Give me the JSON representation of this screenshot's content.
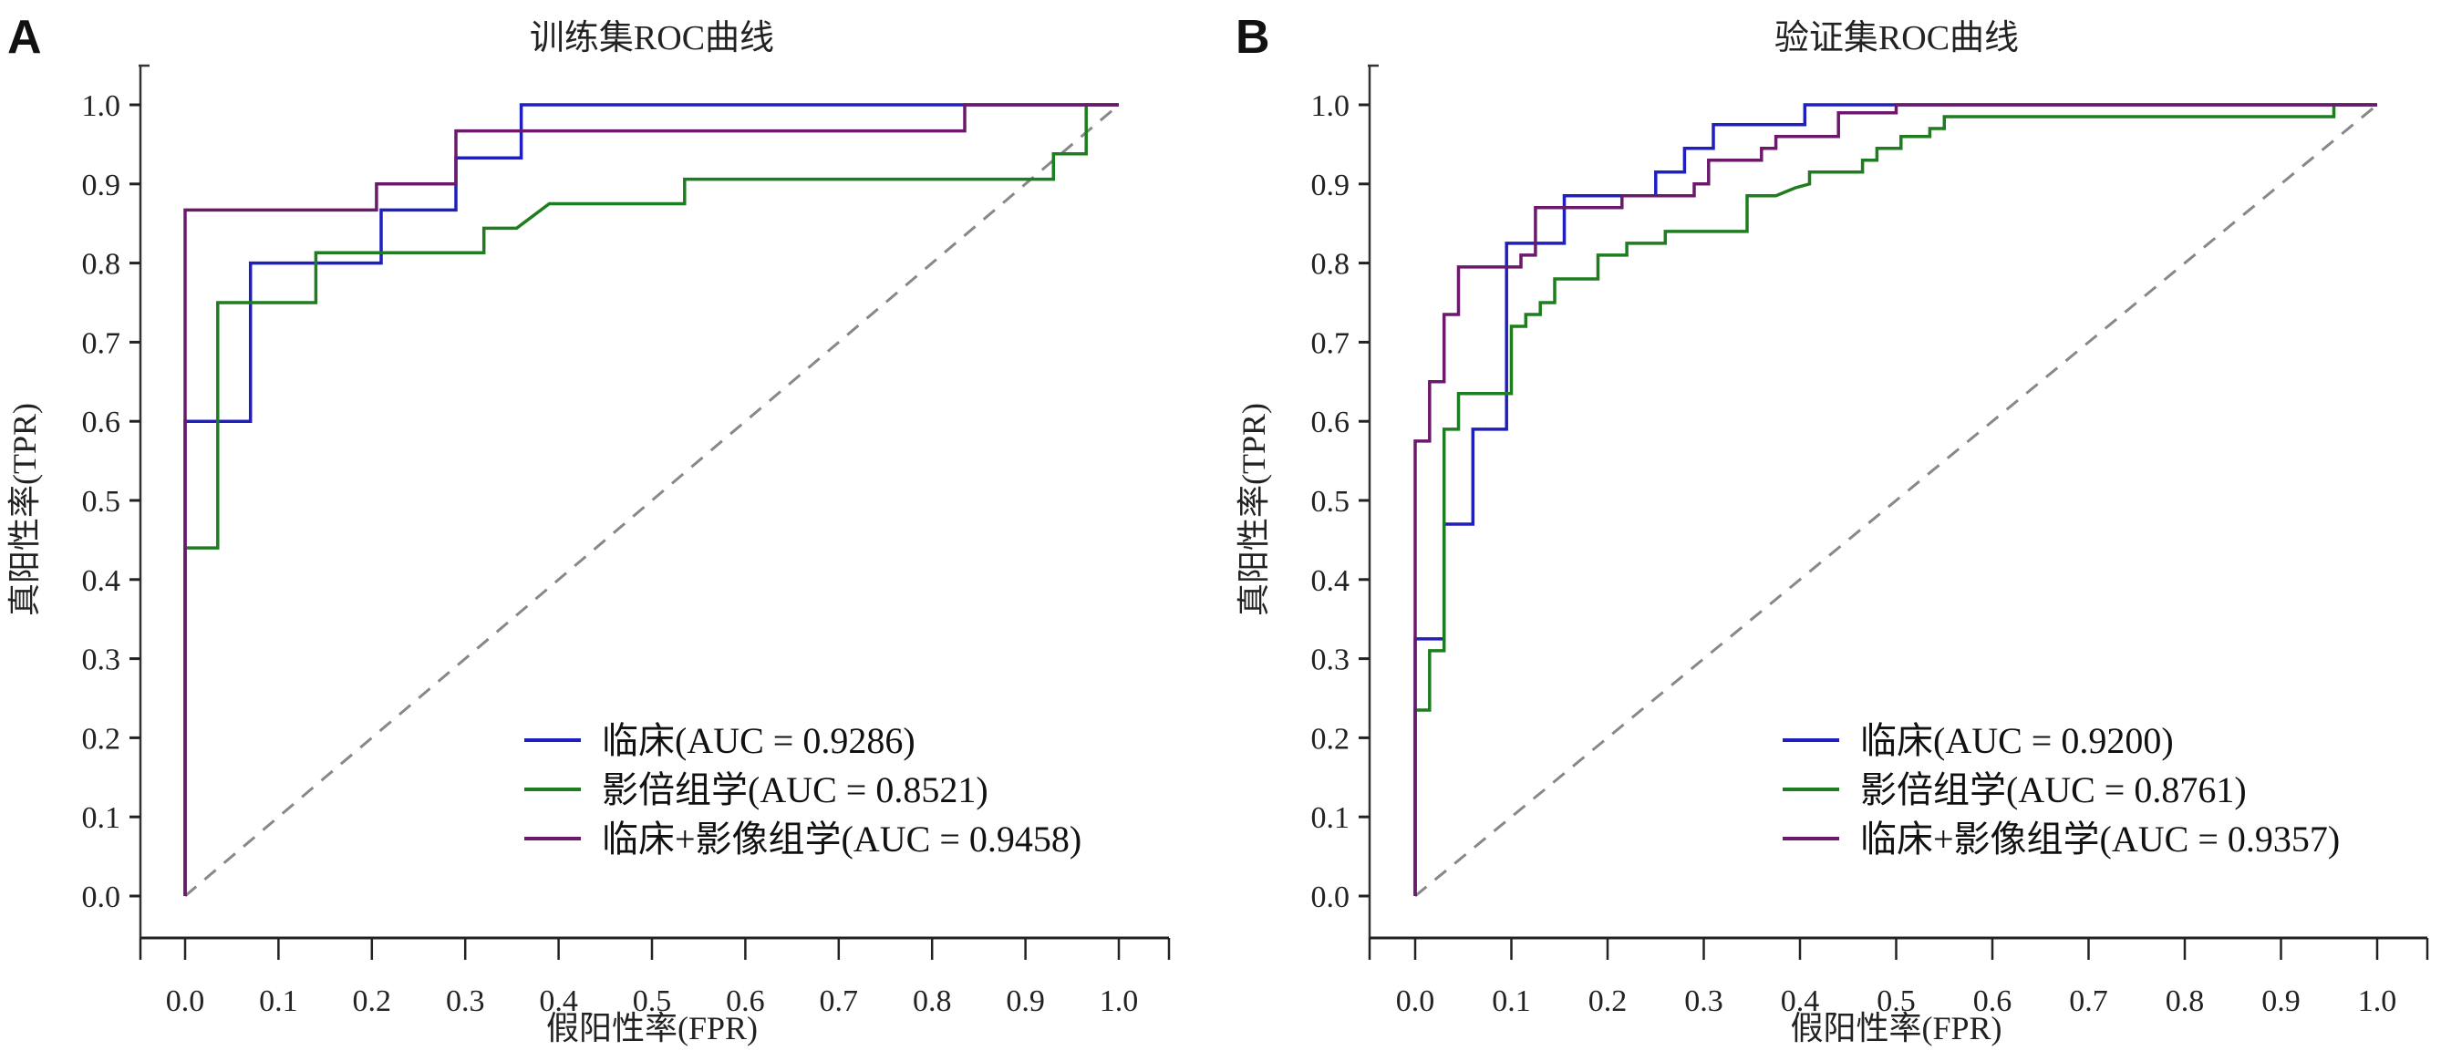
{
  "chart_data": [
    {
      "type": "line",
      "panel_label": "A",
      "title": "训练集ROC曲线",
      "xlabel": "假阳性率(FPR)",
      "ylabel": "真阳性率(TPR)",
      "xlim": [
        0,
        1
      ],
      "ylim": [
        0,
        1
      ],
      "xticks": [
        "0.0",
        "0.1",
        "0.2",
        "0.3",
        "0.4",
        "0.5",
        "0.6",
        "0.7",
        "0.8",
        "0.9",
        "1.0"
      ],
      "yticks": [
        "0.0",
        "0.1",
        "0.2",
        "0.3",
        "0.4",
        "0.5",
        "0.6",
        "0.7",
        "0.8",
        "0.9",
        "1.0"
      ],
      "grid": false,
      "legend_position": "bottom-right",
      "reference_line": {
        "name": "chance",
        "style": "dashed",
        "color": "#888888",
        "x": [
          0,
          1
        ],
        "y": [
          0,
          1
        ]
      },
      "series": [
        {
          "name": "临床(AUC = 0.9286)",
          "color": "#1f1fbf",
          "x": [
            0,
            0,
            0.07,
            0.07,
            0.21,
            0.21,
            0.29,
            0.29,
            0.36,
            0.36,
            1
          ],
          "y": [
            0,
            0.6,
            0.6,
            0.8,
            0.8,
            0.867,
            0.867,
            0.933,
            0.933,
            1.0,
            1.0
          ]
        },
        {
          "name": "影倍组学(AUC = 0.8521)",
          "color": "#1e7d1e",
          "x": [
            0,
            0,
            0.035,
            0.035,
            0.14,
            0.14,
            0.32,
            0.32,
            0.355,
            0.39,
            0.535,
            0.535,
            0.93,
            0.93,
            0.965,
            0.965,
            1
          ],
          "y": [
            0,
            0.44,
            0.44,
            0.75,
            0.75,
            0.813,
            0.813,
            0.844,
            0.844,
            0.875,
            0.875,
            0.906,
            0.906,
            0.938,
            0.938,
            1.0,
            1.0
          ]
        },
        {
          "name": "临床+影像组学(AUC = 0.9458)",
          "color": "#6b1a6b",
          "x": [
            0,
            0,
            0.205,
            0.205,
            0.29,
            0.29,
            0.835,
            0.835,
            1
          ],
          "y": [
            0,
            0.867,
            0.867,
            0.9,
            0.9,
            0.967,
            0.967,
            1.0,
            1.0
          ]
        }
      ]
    },
    {
      "type": "line",
      "panel_label": "B",
      "title": "验证集ROC曲线",
      "xlabel": "假阳性率(FPR)",
      "ylabel": "真阳性率(TPR)",
      "xlim": [
        0,
        1
      ],
      "ylim": [
        0,
        1
      ],
      "xticks": [
        "0.0",
        "0.1",
        "0.2",
        "0.3",
        "0.4",
        "0.5",
        "0.6",
        "0.7",
        "0.8",
        "0.9",
        "1.0"
      ],
      "yticks": [
        "0.0",
        "0.1",
        "0.2",
        "0.3",
        "0.4",
        "0.5",
        "0.6",
        "0.7",
        "0.8",
        "0.9",
        "1.0"
      ],
      "grid": false,
      "legend_position": "bottom-right",
      "reference_line": {
        "name": "chance",
        "style": "dashed",
        "color": "#888888",
        "x": [
          0,
          1
        ],
        "y": [
          0,
          1
        ]
      },
      "series": [
        {
          "name": "临床(AUC = 0.9200)",
          "color": "#1f1fbf",
          "x": [
            0,
            0,
            0.03,
            0.03,
            0.06,
            0.06,
            0.095,
            0.095,
            0.155,
            0.155,
            0.25,
            0.25,
            0.28,
            0.28,
            0.31,
            0.31,
            0.405,
            0.405,
            1
          ],
          "y": [
            0,
            0.325,
            0.325,
            0.47,
            0.47,
            0.59,
            0.59,
            0.825,
            0.825,
            0.885,
            0.885,
            0.915,
            0.915,
            0.945,
            0.945,
            0.975,
            0.975,
            1.0,
            1.0
          ]
        },
        {
          "name": "影倍组学(AUC = 0.8761)",
          "color": "#1e7d1e",
          "x": [
            0,
            0,
            0.015,
            0.015,
            0.03,
            0.03,
            0.045,
            0.045,
            0.1,
            0.1,
            0.115,
            0.115,
            0.13,
            0.13,
            0.145,
            0.145,
            0.19,
            0.19,
            0.22,
            0.22,
            0.26,
            0.26,
            0.345,
            0.345,
            0.375,
            0.395,
            0.41,
            0.41,
            0.465,
            0.465,
            0.48,
            0.48,
            0.505,
            0.505,
            0.535,
            0.535,
            0.55,
            0.55,
            0.955,
            0.955,
            1
          ],
          "y": [
            0,
            0.235,
            0.235,
            0.31,
            0.31,
            0.59,
            0.59,
            0.635,
            0.635,
            0.72,
            0.72,
            0.735,
            0.735,
            0.75,
            0.75,
            0.78,
            0.78,
            0.81,
            0.81,
            0.825,
            0.825,
            0.84,
            0.84,
            0.885,
            0.885,
            0.895,
            0.9,
            0.915,
            0.915,
            0.93,
            0.93,
            0.945,
            0.945,
            0.96,
            0.96,
            0.97,
            0.97,
            0.985,
            0.985,
            1.0,
            1.0
          ]
        },
        {
          "name": "临床+影像组学(AUC = 0.9357)",
          "color": "#6b1a6b",
          "x": [
            0,
            0,
            0.015,
            0.015,
            0.03,
            0.03,
            0.045,
            0.045,
            0.11,
            0.11,
            0.125,
            0.125,
            0.215,
            0.215,
            0.29,
            0.29,
            0.305,
            0.305,
            0.36,
            0.36,
            0.375,
            0.375,
            0.44,
            0.44,
            0.5,
            0.5,
            1
          ],
          "y": [
            0,
            0.575,
            0.575,
            0.65,
            0.65,
            0.735,
            0.735,
            0.795,
            0.795,
            0.81,
            0.81,
            0.87,
            0.87,
            0.885,
            0.885,
            0.9,
            0.9,
            0.93,
            0.93,
            0.945,
            0.945,
            0.96,
            0.96,
            0.99,
            0.99,
            1.0,
            1.0
          ]
        }
      ]
    }
  ]
}
